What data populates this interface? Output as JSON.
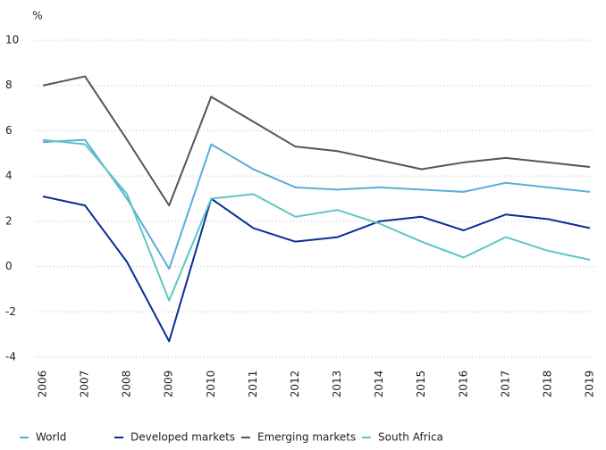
{
  "chart_data": {
    "type": "line",
    "y_label": "%",
    "categories": [
      "2006",
      "2007",
      "2008",
      "2009",
      "2010",
      "2011",
      "2012",
      "2013",
      "2014",
      "2015",
      "2016",
      "2017",
      "2018",
      "2019"
    ],
    "series": [
      {
        "name": "World",
        "color": "#5aaed8",
        "values": [
          5.5,
          5.6,
          3.0,
          -0.1,
          5.4,
          4.3,
          3.5,
          3.4,
          3.5,
          3.4,
          3.3,
          3.7,
          3.5,
          3.3
        ]
      },
      {
        "name": "Developed markets",
        "color": "#0a2d96",
        "values": [
          3.1,
          2.7,
          0.2,
          -3.3,
          3.0,
          1.7,
          1.1,
          1.3,
          2.0,
          2.2,
          1.6,
          2.3,
          2.1,
          1.7
        ]
      },
      {
        "name": "Emerging markets",
        "color": "#555555",
        "values": [
          8.0,
          8.4,
          5.6,
          2.7,
          7.5,
          6.4,
          5.3,
          5.1,
          4.7,
          4.3,
          4.6,
          4.8,
          4.6,
          4.4
        ]
      },
      {
        "name": "South Africa",
        "color": "#5cc8c2",
        "values": [
          5.6,
          5.4,
          3.2,
          -1.5,
          3.0,
          3.2,
          2.2,
          2.5,
          1.9,
          1.1,
          0.4,
          1.3,
          0.7,
          0.3
        ]
      }
    ],
    "ylim": [
      -4,
      10
    ],
    "yticks": [
      -4,
      -2,
      0,
      2,
      4,
      6,
      8,
      10
    ],
    "grid": true,
    "legend": "bottom"
  }
}
